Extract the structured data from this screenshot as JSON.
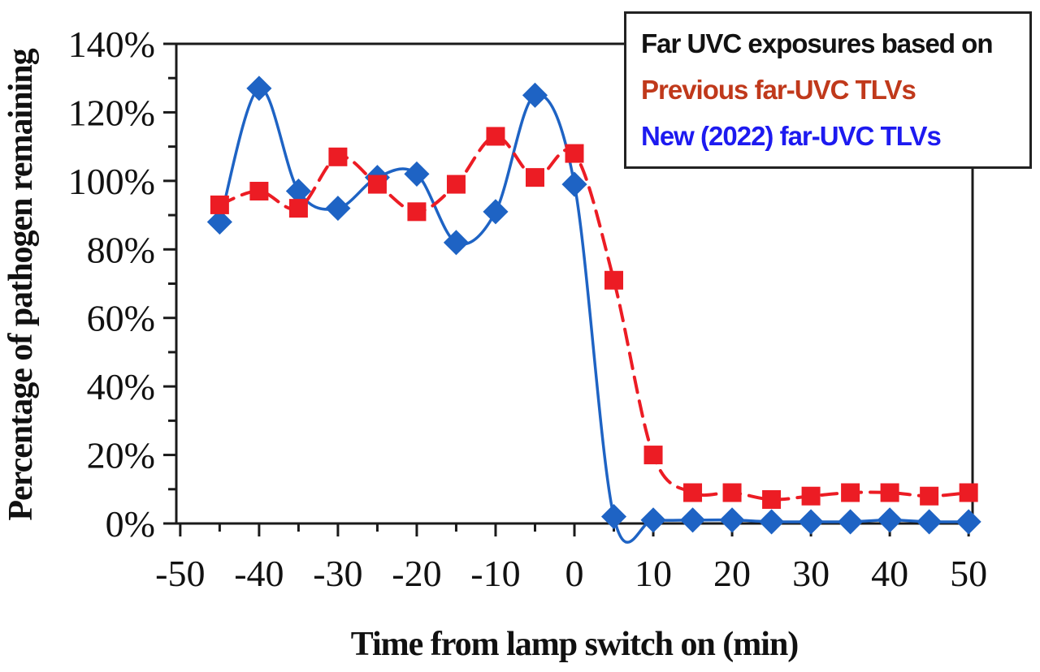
{
  "legend": {
    "title": {
      "text": "Far UVC exposures based on",
      "color": "#121212"
    },
    "items": [
      {
        "text": "Previous far-UVC TLVs",
        "color": "#c0391b"
      },
      {
        "text": "New (2022) far-UVC TLVs",
        "color": "#1d1af0"
      }
    ]
  },
  "chart_data": {
    "type": "line",
    "title": "",
    "xlabel": "Time from lamp switch on (min)",
    "ylabel": "Percentage of pathogen remaining",
    "grid": false,
    "legend_position": "top-right",
    "x": [
      -45,
      -40,
      -35,
      -30,
      -25,
      -20,
      -15,
      -10,
      -5,
      0,
      5,
      10,
      15,
      20,
      25,
      30,
      35,
      40,
      45,
      50
    ],
    "series": [
      {
        "name": "New (2022) far-UVC TLVs",
        "color": "#1e63c4",
        "line_style": "solid",
        "marker": "diamond",
        "values": [
          88,
          127,
          97,
          92,
          101,
          102,
          82,
          91,
          125,
          99,
          2,
          1,
          1,
          1,
          0.5,
          0.5,
          0.5,
          1,
          0.5,
          0.5
        ]
      },
      {
        "name": "Previous far-UVC TLVs",
        "color": "#ec1c24",
        "line_style": "dashed",
        "marker": "square",
        "values": [
          93,
          97,
          92,
          107,
          99,
          91,
          99,
          113,
          101,
          108,
          71,
          20,
          9,
          9,
          7,
          8,
          9,
          9,
          8,
          9
        ]
      }
    ],
    "x_axis": {
      "range": [
        -50.5,
        50.5
      ],
      "major_ticks": [
        -50,
        -40,
        -30,
        -20,
        -10,
        0,
        10,
        20,
        30,
        40,
        50
      ],
      "tick_labels": [
        "-50",
        "-40",
        "-30",
        "-20",
        "-10",
        "0",
        "10",
        "20",
        "30",
        "40",
        "50"
      ],
      "minor_tick_step": 5
    },
    "y_axis": {
      "range": [
        0,
        140
      ],
      "major_tick_step": 20,
      "minor_tick_step": 10,
      "tick_labels": [
        "0%",
        "20%",
        "40%",
        "60%",
        "80%",
        "100%",
        "120%",
        "140%"
      ]
    }
  }
}
